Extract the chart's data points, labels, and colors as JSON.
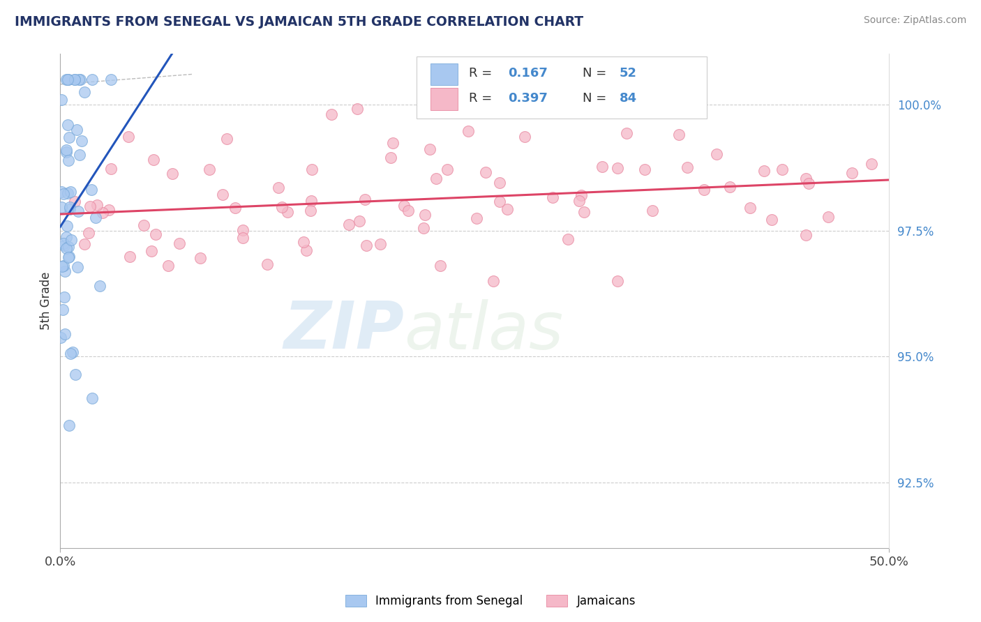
{
  "title": "IMMIGRANTS FROM SENEGAL VS JAMAICAN 5TH GRADE CORRELATION CHART",
  "source_text": "Source: ZipAtlas.com",
  "ylabel": "5th Grade",
  "xlim": [
    0.0,
    50.0
  ],
  "ylim": [
    91.2,
    101.0
  ],
  "yticks_right": [
    92.5,
    95.0,
    97.5,
    100.0
  ],
  "ytick_right_labels": [
    "92.5%",
    "95.0%",
    "97.5%",
    "100.0%"
  ],
  "blue_R": 0.167,
  "blue_N": 52,
  "pink_R": 0.397,
  "pink_N": 84,
  "blue_color": "#a8c8f0",
  "blue_edge_color": "#7aaada",
  "pink_color": "#f5b8c8",
  "pink_edge_color": "#e888a0",
  "blue_line_color": "#2255bb",
  "pink_line_color": "#dd4466",
  "legend_blue_label": "Immigrants from Senegal",
  "legend_pink_label": "Jamaicans",
  "watermark_zip": "ZIP",
  "watermark_atlas": "atlas",
  "background_color": "#ffffff",
  "grid_color": "#cccccc",
  "title_color": "#223366",
  "source_color": "#888888",
  "right_tick_color": "#4488cc"
}
